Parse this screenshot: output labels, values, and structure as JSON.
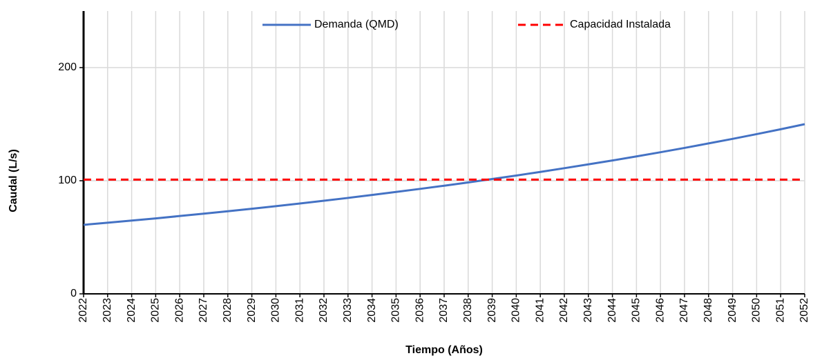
{
  "chart_data": {
    "type": "line",
    "xlabel": "Tiempo (Años)",
    "ylabel": "Caudal (L/s)",
    "x": [
      2022,
      2023,
      2024,
      2025,
      2026,
      2027,
      2028,
      2029,
      2030,
      2031,
      2032,
      2033,
      2034,
      2035,
      2036,
      2037,
      2038,
      2039,
      2040,
      2041,
      2042,
      2043,
      2044,
      2045,
      2046,
      2047,
      2048,
      2049,
      2050,
      2051,
      2052
    ],
    "series": [
      {
        "name": "Demanda (QMD)",
        "color": "#4472c4",
        "style": "solid",
        "values": [
          61.0,
          62.9,
          64.8,
          66.7,
          68.8,
          70.9,
          73.0,
          75.2,
          77.5,
          79.9,
          82.3,
          84.8,
          87.4,
          90.1,
          92.8,
          95.6,
          98.5,
          101.5,
          104.6,
          107.8,
          111.1,
          114.5,
          117.9,
          121.5,
          125.2,
          129.0,
          133.0,
          137.0,
          141.2,
          145.5,
          150
        ]
      },
      {
        "name": "Capacidad Instalada",
        "color": "#ff0000",
        "style": "dashed",
        "values": [
          101,
          101,
          101,
          101,
          101,
          101,
          101,
          101,
          101,
          101,
          101,
          101,
          101,
          101,
          101,
          101,
          101,
          101,
          101,
          101,
          101,
          101,
          101,
          101,
          101,
          101,
          101,
          101,
          101,
          101,
          101
        ]
      }
    ],
    "xlim": [
      2022,
      2052
    ],
    "xticks": [
      2022,
      2023,
      2024,
      2025,
      2026,
      2027,
      2028,
      2029,
      2030,
      2031,
      2032,
      2033,
      2034,
      2035,
      2036,
      2037,
      2038,
      2039,
      2040,
      2041,
      2042,
      2043,
      2044,
      2045,
      2046,
      2047,
      2048,
      2049,
      2050,
      2051,
      2052
    ],
    "ylim": [
      0,
      250
    ],
    "yticks": [
      0,
      100,
      200
    ],
    "grid": true,
    "legend": "top"
  }
}
